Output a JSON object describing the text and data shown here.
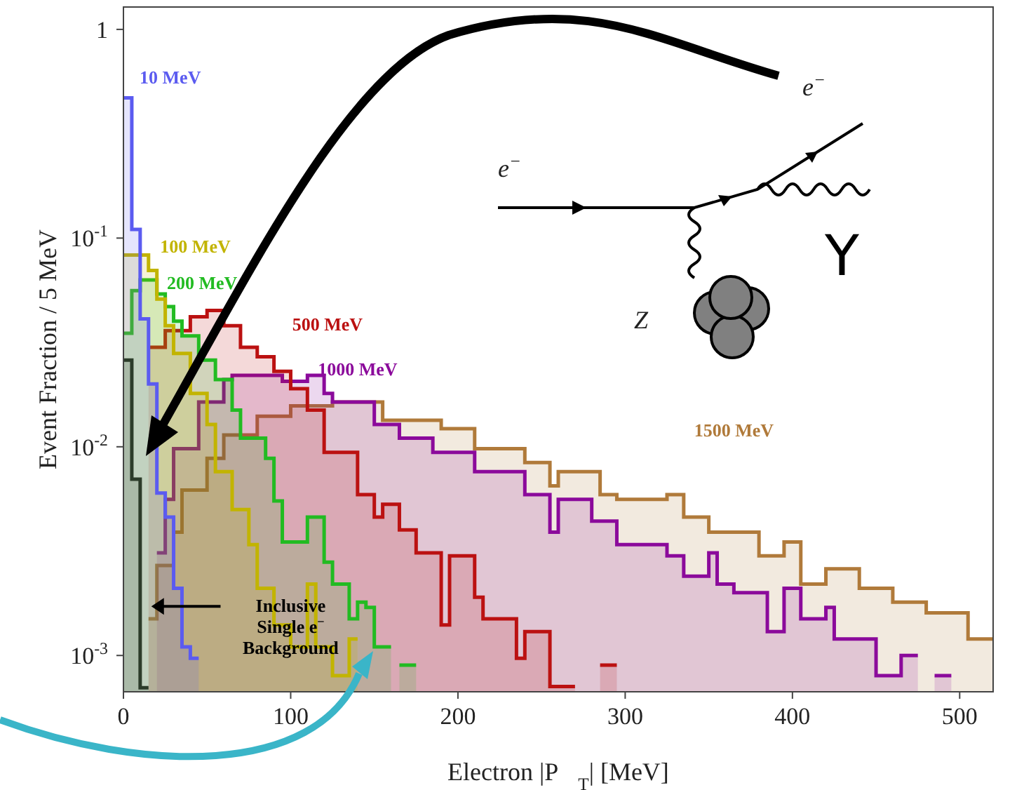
{
  "chart_data": {
    "type": "area",
    "xlabel": "Electron |P⃗$_{T}$| [MeV]",
    "ylabel": "Event Fraction / 5 MeV",
    "xlim": [
      0,
      520
    ],
    "xticks": [
      0,
      100,
      200,
      300,
      400,
      500
    ],
    "ylim": [
      0.00067,
      1.28
    ],
    "yticks": [
      1,
      {
        "value": 0.1,
        "label": "10$^{-1}$"
      },
      {
        "value": 0.01,
        "label": "10$^{-2}$"
      },
      {
        "value": 0.001,
        "label": "10$^{-3}$"
      }
    ],
    "log": true,
    "annotations": [
      "e$^{−}$",
      "e$^{−}$",
      "Z",
      "Y"
    ],
    "series": [
      {
        "name": "10 MeV",
        "color": "#5b5bf0",
        "x": [
          0,
          5,
          5,
          10,
          10,
          15,
          15,
          20,
          20,
          25,
          25,
          30,
          30,
          35,
          35,
          40,
          40,
          45
        ],
        "values": [
          0.47,
          0.47,
          0.11,
          0.11,
          0.041,
          0.041,
          0.02,
          0.02,
          0.006,
          0.006,
          0.0046,
          0.0046,
          0.0021,
          0.0021,
          0.0011,
          0.0011,
          0.00097,
          0.00097
        ]
      },
      {
        "name": "100 MeV",
        "color": "#c2b400",
        "x": [
          0,
          15,
          15,
          20,
          20,
          25,
          25,
          30,
          30,
          40,
          40,
          50,
          50,
          55,
          55,
          65,
          65,
          75,
          75,
          80,
          80,
          90,
          90,
          100,
          100,
          110,
          110,
          115,
          115,
          125,
          125,
          135,
          135,
          140
        ],
        "values": [
          0.083,
          0.083,
          0.07,
          0.07,
          0.051,
          0.051,
          0.038,
          0.038,
          0.028,
          0.028,
          0.018,
          0.018,
          0.0128,
          0.0128,
          0.0076,
          0.0076,
          0.005,
          0.005,
          0.0034,
          0.0034,
          0.0021,
          0.0021,
          0.0014,
          0.0014,
          0.0011,
          0.0011,
          0.0022,
          0.0022,
          0.0011,
          0.0011,
          0.0008,
          0.0008,
          0.0012,
          0.0012
        ]
      },
      {
        "name": "200 MeV",
        "color": "#22bb22",
        "x": [
          0,
          5,
          5,
          10,
          10,
          20,
          20,
          25,
          25,
          30,
          30,
          35,
          35,
          45,
          45,
          55,
          55,
          65,
          65,
          70,
          70,
          85,
          85,
          90,
          90,
          95,
          95,
          110,
          110,
          120,
          120,
          125,
          125,
          135,
          135,
          140,
          140,
          145,
          145,
          150,
          150,
          160,
          162,
          165,
          175
        ],
        "values": [
          0.035,
          0.035,
          0.056,
          0.056,
          0.063,
          0.063,
          0.054,
          0.054,
          0.047,
          0.047,
          0.04,
          0.04,
          0.034,
          0.034,
          0.026,
          0.026,
          0.021,
          0.021,
          0.015,
          0.015,
          0.011,
          0.011,
          0.0088,
          0.0088,
          0.0055,
          0.0055,
          0.0035,
          0.0035,
          0.0046,
          0.0046,
          0.0028,
          0.0028,
          0.0022,
          0.0022,
          0.0015,
          0.0015,
          0.0018,
          0.0018,
          0.0017,
          0.0017,
          0.0011,
          0.0011,
          null,
          0.0009,
          0.0009
        ]
      },
      {
        "name": "500 MeV",
        "color": "#bb1111",
        "x": [
          15,
          25,
          25,
          40,
          40,
          50,
          50,
          60,
          60,
          70,
          70,
          80,
          80,
          90,
          90,
          100,
          100,
          110,
          110,
          120,
          120,
          140,
          140,
          150,
          150,
          155,
          155,
          165,
          165,
          175,
          175,
          190,
          190,
          195,
          195,
          210,
          210,
          215,
          215,
          235,
          235,
          240,
          240,
          255,
          255,
          270,
          280,
          285,
          290,
          295
        ],
        "values": [
          0.03,
          0.03,
          0.036,
          0.036,
          0.042,
          0.042,
          0.045,
          0.045,
          0.038,
          0.038,
          0.03,
          0.03,
          0.027,
          0.027,
          0.023,
          0.023,
          0.019,
          0.019,
          0.015,
          0.015,
          0.0094,
          0.0094,
          0.0059,
          0.0059,
          0.0046,
          0.0046,
          0.0053,
          0.0053,
          0.004,
          0.004,
          0.0031,
          0.0031,
          0.0014,
          0.0014,
          0.003,
          0.003,
          0.0019,
          0.0019,
          0.0015,
          0.0015,
          0.00097,
          0.00097,
          0.0013,
          0.0013,
          0.00071,
          0.00071,
          null,
          0.0009,
          0.0009,
          0.0009
        ]
      },
      {
        "name": "1000 MeV",
        "color": "#8b0a9b",
        "x": [
          20,
          25,
          25,
          30,
          30,
          45,
          45,
          60,
          60,
          65,
          65,
          95,
          95,
          110,
          110,
          120,
          120,
          125,
          125,
          150,
          150,
          165,
          165,
          185,
          185,
          210,
          210,
          240,
          240,
          255,
          255,
          260,
          260,
          280,
          280,
          295,
          295,
          325,
          325,
          335,
          335,
          350,
          350,
          355,
          355,
          365,
          365,
          385,
          385,
          395,
          395,
          405,
          405,
          420,
          420,
          425,
          425,
          450,
          450,
          465,
          465,
          475,
          480,
          485,
          495
        ],
        "values": [
          0.0031,
          0.0031,
          0.0056,
          0.0056,
          0.0098,
          0.0098,
          0.0164,
          0.0164,
          0.021,
          0.021,
          0.022,
          0.022,
          0.0206,
          0.0206,
          0.022,
          0.022,
          0.018,
          0.018,
          0.0164,
          0.0164,
          0.0128,
          0.0128,
          0.011,
          0.011,
          0.0094,
          0.0094,
          0.0076,
          0.0076,
          0.0059,
          0.0059,
          0.0039,
          0.0039,
          0.0056,
          0.0056,
          0.0044,
          0.0044,
          0.0034,
          0.0034,
          0.003,
          0.003,
          0.0024,
          0.0024,
          0.0031,
          0.0031,
          0.0022,
          0.0022,
          0.002,
          0.002,
          0.0013,
          0.0013,
          0.0021,
          0.0021,
          0.0015,
          0.0015,
          0.0017,
          0.0017,
          0.0012,
          0.0012,
          0.0008,
          0.0008,
          0.001,
          0.001,
          null,
          0.0008,
          0.0008
        ]
      },
      {
        "name": "1500 MeV",
        "color": "#b07a3a",
        "x": [
          15,
          20,
          20,
          30,
          30,
          35,
          35,
          50,
          50,
          60,
          60,
          80,
          80,
          100,
          100,
          125,
          125,
          155,
          155,
          190,
          190,
          210,
          210,
          240,
          240,
          255,
          255,
          260,
          260,
          285,
          285,
          295,
          295,
          325,
          325,
          335,
          335,
          350,
          350,
          380,
          380,
          395,
          395,
          405,
          405,
          420,
          420,
          440,
          440,
          460,
          460,
          480,
          480,
          505,
          505,
          520
        ],
        "values": [
          0.0015,
          0.0015,
          0.0027,
          0.0027,
          0.0039,
          0.0039,
          0.0062,
          0.0062,
          0.0088,
          0.0088,
          0.0114,
          0.0114,
          0.014,
          0.014,
          0.0157,
          0.0157,
          0.0164,
          0.0164,
          0.0134,
          0.0134,
          0.0122,
          0.0122,
          0.0098,
          0.0098,
          0.0084,
          0.0084,
          0.0065,
          0.0065,
          0.0076,
          0.0076,
          0.0059,
          0.0059,
          0.0056,
          0.0056,
          0.0059,
          0.0059,
          0.0046,
          0.0046,
          0.0039,
          0.0039,
          0.003,
          0.003,
          0.0035,
          0.0035,
          0.0022,
          0.0022,
          0.0026,
          0.0026,
          0.0021,
          0.0021,
          0.0018,
          0.0018,
          0.0016,
          0.0016,
          0.0012,
          0.0012
        ]
      },
      {
        "name": "Inclusive Single e$^{−}$ Background",
        "color": "#000000",
        "x": [
          0,
          5,
          5,
          10,
          10,
          15
        ],
        "values": [
          0.026,
          0.026,
          0.007,
          0.007,
          0.0007,
          0.0007
        ]
      }
    ]
  }
}
